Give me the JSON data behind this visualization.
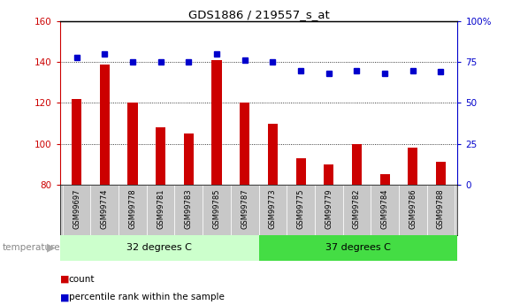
{
  "title": "GDS1886 / 219557_s_at",
  "samples": [
    "GSM99697",
    "GSM99774",
    "GSM99778",
    "GSM99781",
    "GSM99783",
    "GSM99785",
    "GSM99787",
    "GSM99773",
    "GSM99775",
    "GSM99779",
    "GSM99782",
    "GSM99784",
    "GSM99786",
    "GSM99788"
  ],
  "counts": [
    122,
    139,
    120,
    108,
    105,
    141,
    120,
    110,
    93,
    90,
    100,
    85,
    98,
    91
  ],
  "percentiles": [
    78,
    80,
    75,
    75,
    75,
    80,
    76,
    75,
    70,
    68,
    70,
    68,
    70,
    69
  ],
  "group1_label": "32 degrees C",
  "group2_label": "37 degrees C",
  "group1_count": 7,
  "group2_count": 7,
  "bar_color": "#cc0000",
  "dot_color": "#0000cc",
  "ylim_left": [
    80,
    160
  ],
  "ylim_right": [
    0,
    100
  ],
  "yticks_left": [
    80,
    100,
    120,
    140,
    160
  ],
  "yticks_right": [
    0,
    25,
    50,
    75,
    100
  ],
  "ytick_right_labels": [
    "0",
    "25",
    "50",
    "75",
    "100%"
  ],
  "bg_color_samples": "#c8c8c8",
  "group1_bg": "#ccffcc",
  "group2_bg": "#44dd44",
  "temp_label": "temperature",
  "legend_count": "count",
  "legend_pct": "percentile rank within the sample"
}
